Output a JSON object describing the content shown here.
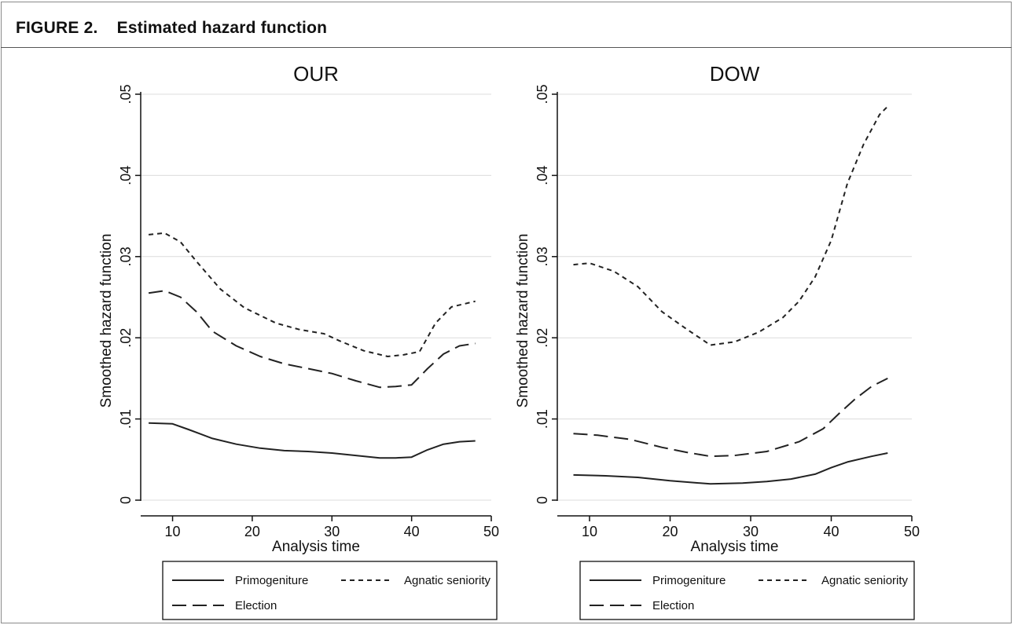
{
  "figure": {
    "title": "FIGURE 2.    Estimated hazard function"
  },
  "chart_data": [
    {
      "type": "line",
      "title": "OUR",
      "xlabel": "Analysis time",
      "ylabel": "Smoothed hazard function",
      "xlim": [
        6,
        50
      ],
      "ylim": [
        0,
        0.05
      ],
      "x_ticks": [
        10,
        20,
        30,
        40,
        50
      ],
      "x_tick_labels": [
        "10",
        "20",
        "30",
        "40",
        "50"
      ],
      "y_ticks": [
        0,
        0.01,
        0.02,
        0.03,
        0.04,
        0.05
      ],
      "y_tick_labels": [
        "0",
        ".01",
        ".02",
        ".03",
        ".04",
        ".05"
      ],
      "grid": "horizontal",
      "legend_position": "bottom",
      "series": [
        {
          "name": "Primogeniture",
          "style": "solid",
          "x": [
            7,
            10,
            12,
            15,
            18,
            21,
            24,
            27,
            30,
            33,
            36,
            38,
            40,
            42,
            44,
            46,
            48
          ],
          "y": [
            0.0095,
            0.0094,
            0.0087,
            0.0076,
            0.0069,
            0.0064,
            0.0061,
            0.006,
            0.0058,
            0.0055,
            0.0052,
            0.0052,
            0.0053,
            0.0062,
            0.0069,
            0.0072,
            0.0073
          ]
        },
        {
          "name": "Election",
          "style": "longdash",
          "x": [
            7,
            9,
            11,
            13,
            15,
            18,
            21,
            24,
            27,
            30,
            33,
            36,
            38,
            40,
            42,
            44,
            46,
            48
          ],
          "y": [
            0.0255,
            0.0258,
            0.025,
            0.0232,
            0.0208,
            0.019,
            0.0177,
            0.0168,
            0.0162,
            0.0156,
            0.0147,
            0.0139,
            0.014,
            0.0142,
            0.0162,
            0.018,
            0.019,
            0.0193
          ]
        },
        {
          "name": "Agnatic seniority",
          "style": "shortdash",
          "x": [
            7,
            9,
            11,
            13,
            16,
            19,
            23,
            26,
            29,
            31,
            34,
            37,
            39,
            41,
            43,
            45,
            48
          ],
          "y": [
            0.0327,
            0.0329,
            0.0318,
            0.0294,
            0.026,
            0.0237,
            0.0218,
            0.021,
            0.0205,
            0.0196,
            0.0184,
            0.0177,
            0.0179,
            0.0183,
            0.0218,
            0.0238,
            0.0245
          ]
        }
      ]
    },
    {
      "type": "line",
      "title": "DOW",
      "xlabel": "Analysis time",
      "ylabel": "Smoothed hazard function",
      "xlim": [
        6,
        50
      ],
      "ylim": [
        0,
        0.05
      ],
      "x_ticks": [
        10,
        20,
        30,
        40,
        50
      ],
      "x_tick_labels": [
        "10",
        "20",
        "30",
        "40",
        "50"
      ],
      "y_ticks": [
        0,
        0.01,
        0.02,
        0.03,
        0.04,
        0.05
      ],
      "y_tick_labels": [
        "0",
        ".01",
        ".02",
        ".03",
        ".04",
        ".05"
      ],
      "grid": "horizontal",
      "legend_position": "bottom",
      "series": [
        {
          "name": "Primogeniture",
          "style": "solid",
          "x": [
            8,
            12,
            16,
            20,
            25,
            29,
            32,
            35,
            38,
            40,
            42,
            45,
            47
          ],
          "y": [
            0.0031,
            0.003,
            0.0028,
            0.0024,
            0.002,
            0.0021,
            0.0023,
            0.0026,
            0.0032,
            0.004,
            0.0047,
            0.0054,
            0.0058
          ]
        },
        {
          "name": "Election",
          "style": "longdash",
          "x": [
            8,
            11,
            15,
            19,
            22,
            25,
            28,
            32,
            36,
            39,
            41,
            43,
            45,
            47
          ],
          "y": [
            0.0082,
            0.008,
            0.0075,
            0.0065,
            0.0059,
            0.0054,
            0.0055,
            0.006,
            0.0072,
            0.0088,
            0.0107,
            0.0125,
            0.014,
            0.015
          ]
        },
        {
          "name": "Agnatic seniority",
          "style": "shortdash",
          "x": [
            8,
            10,
            13,
            16,
            19,
            22,
            25,
            28,
            31,
            34,
            36,
            38,
            40,
            42,
            44,
            46,
            47
          ],
          "y": [
            0.029,
            0.0292,
            0.0282,
            0.0263,
            0.0232,
            0.0211,
            0.0191,
            0.0195,
            0.0207,
            0.0225,
            0.0245,
            0.0275,
            0.032,
            0.039,
            0.0438,
            0.0475,
            0.0485
          ]
        }
      ]
    }
  ]
}
